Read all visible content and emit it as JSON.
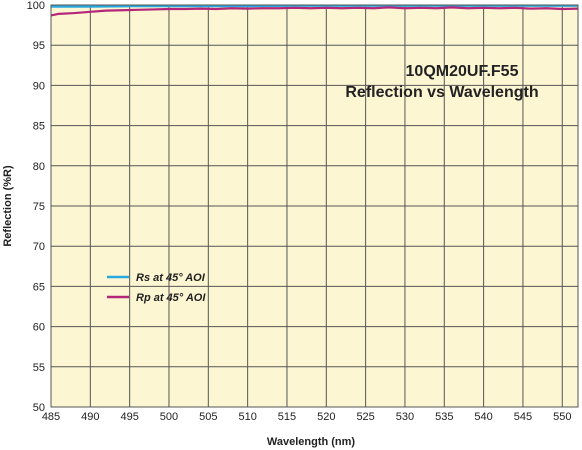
{
  "chart_data": {
    "type": "line",
    "title_line1": "10QM20UF.F55",
    "title_line2": "Reflection vs Wavelength",
    "xlabel": "Wavelength (nm)",
    "ylabel": "Reflection (%R)",
    "xlim": [
      485,
      552
    ],
    "ylim": [
      50,
      100
    ],
    "xticks": [
      485,
      490,
      495,
      500,
      505,
      510,
      515,
      520,
      525,
      530,
      535,
      540,
      545,
      550
    ],
    "yticks": [
      50,
      55,
      60,
      65,
      70,
      75,
      80,
      85,
      90,
      95,
      100
    ],
    "grid": true,
    "legend_position": "lower-left",
    "background_color": "#fdf6d3",
    "grid_color": "#555555",
    "series": [
      {
        "name": "Rs at 45° AOI",
        "color": "#29a9e0",
        "x": [
          485,
          490,
          495,
          500,
          505,
          510,
          515,
          520,
          525,
          530,
          535,
          540,
          545,
          550,
          552
        ],
        "y": [
          99.8,
          99.8,
          99.85,
          99.85,
          99.85,
          99.85,
          99.9,
          99.9,
          99.9,
          99.9,
          99.9,
          99.9,
          99.9,
          99.9,
          99.9
        ]
      },
      {
        "name": "Rp at 45° AOI",
        "color": "#b5267a",
        "x": [
          485,
          486,
          488,
          490,
          492,
          494,
          496,
          498,
          500,
          502,
          504,
          506,
          508,
          510,
          512,
          514,
          516,
          518,
          520,
          522,
          524,
          526,
          528,
          530,
          532,
          534,
          536,
          538,
          540,
          542,
          544,
          546,
          548,
          550,
          552
        ],
        "y": [
          98.7,
          98.9,
          99.0,
          99.15,
          99.3,
          99.35,
          99.4,
          99.45,
          99.5,
          99.5,
          99.55,
          99.5,
          99.6,
          99.55,
          99.6,
          99.6,
          99.65,
          99.6,
          99.65,
          99.6,
          99.65,
          99.6,
          99.7,
          99.6,
          99.65,
          99.6,
          99.7,
          99.6,
          99.65,
          99.6,
          99.65,
          99.55,
          99.6,
          99.5,
          99.55
        ]
      }
    ]
  }
}
